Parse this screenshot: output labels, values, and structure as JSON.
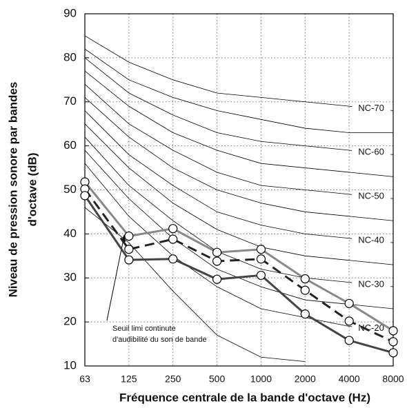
{
  "chart_data": {
    "type": "line",
    "x_title": "Fréquence centrale de la bande d'octave (Hz)",
    "y_title": [
      "Niveau de pression sonore par bandes",
      "d'octave (dB)"
    ],
    "categories": [
      "63",
      "125",
      "250",
      "500",
      "1000",
      "2000",
      "4000",
      "8000"
    ],
    "ylim": [
      10,
      90
    ],
    "yticks": [
      10,
      20,
      30,
      40,
      50,
      60,
      70,
      80,
      90
    ],
    "grid": true,
    "annotation": [
      "Seuil limi continute",
      "d'audibilité du son de bande"
    ],
    "series": [
      {
        "name": "NC-70",
        "color": "#000000",
        "values": [
          85,
          79,
          75,
          72,
          71,
          70,
          69,
          68
        ]
      },
      {
        "color": "#000000",
        "values": [
          82,
          75,
          71,
          68,
          66,
          64,
          63,
          63
        ]
      },
      {
        "name": "NC-60",
        "color": "#000000",
        "values": [
          80,
          72,
          67,
          63,
          61,
          60,
          59,
          58
        ]
      },
      {
        "color": "#000000",
        "values": [
          77,
          69,
          63,
          59,
          56,
          55,
          54,
          53
        ]
      },
      {
        "name": "NC-50",
        "color": "#000000",
        "values": [
          74,
          65,
          59,
          54,
          51,
          50,
          49,
          48
        ]
      },
      {
        "color": "#000000",
        "values": [
          71,
          62,
          55,
          50,
          47,
          45,
          44,
          43
        ]
      },
      {
        "name": "NC-40",
        "color": "#000000",
        "values": [
          68,
          58,
          51,
          45,
          42,
          40,
          39,
          38
        ]
      },
      {
        "color": "#000000",
        "values": [
          65,
          55,
          47,
          41,
          37,
          35,
          34,
          33
        ]
      },
      {
        "name": "NC-30",
        "color": "#000000",
        "values": [
          62,
          51,
          43,
          36,
          32,
          30,
          29,
          28
        ]
      },
      {
        "color": "#000000",
        "values": [
          59,
          48,
          39,
          32,
          28,
          25,
          24,
          23
        ]
      },
      {
        "name": "NC-20",
        "color": "#000000",
        "values": [
          56,
          44,
          35,
          28,
          23,
          21,
          19,
          18
        ]
      },
      {
        "color": "#000000",
        "values": [
          46,
          38,
          27,
          17,
          12,
          11,
          null,
          null
        ]
      },
      {
        "color": "#888888",
        "width": 3,
        "markers": true,
        "values": [
          51.8,
          39.5,
          41.2,
          35.8,
          36.5,
          29.8,
          24.2,
          18
        ]
      },
      {
        "color": "#222222",
        "width": 3,
        "dashed": true,
        "markers": true,
        "values": [
          50.2,
          36.5,
          38.8,
          33.8,
          34.3,
          27.2,
          20.2,
          15.5
        ]
      },
      {
        "color": "#444444",
        "width": 3,
        "markers": true,
        "values": [
          48.7,
          34.1,
          34.3,
          29.7,
          30.6,
          21.8,
          15.8,
          13
        ]
      }
    ]
  }
}
